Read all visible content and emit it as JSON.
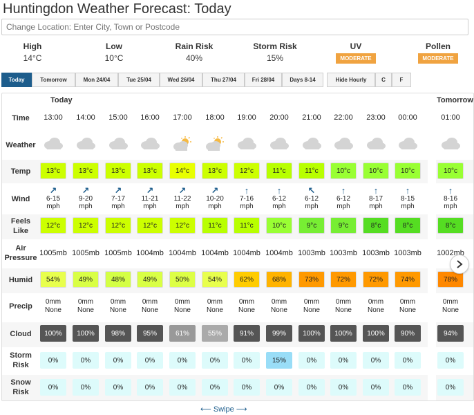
{
  "title": "Huntingdon Weather Forecast: Today",
  "search": {
    "placeholder": "Change Location: Enter City, Town or Postcode"
  },
  "summary": {
    "high": {
      "label": "High",
      "value": "14°C"
    },
    "low": {
      "label": "Low",
      "value": "10°C"
    },
    "rain": {
      "label": "Rain Risk",
      "value": "40%"
    },
    "storm": {
      "label": "Storm Risk",
      "value": "15%"
    },
    "uv": {
      "label": "UV",
      "value": "MODERATE"
    },
    "pollen": {
      "label": "Pollen",
      "value": "MODERATE"
    }
  },
  "tabs": [
    "Today",
    "Tomorrow",
    "Mon 24/04",
    "Tue 25/04",
    "Wed 26/04",
    "Thu 27/04",
    "Fri 28/04",
    "Days 8-14",
    "Hide Hourly",
    "C",
    "F"
  ],
  "days": {
    "today": "Today",
    "tomorrow": "Tomorrow"
  },
  "row_labels": {
    "time": "Time",
    "weather": "Weather",
    "temp": "Temp",
    "wind": "Wind",
    "feels1": "Feels",
    "feels2": "Like",
    "air1": "Air",
    "air2": "Pressure",
    "humid": "Humid",
    "precip": "Precip",
    "cloud": "Cloud",
    "storm1": "Storm",
    "storm2": "Risk",
    "snow1": "Snow",
    "snow2": "Risk"
  },
  "hours": [
    {
      "time": "13:00",
      "icon": "cloud-icon",
      "temp": "13°c",
      "temp_color": "#ccff00",
      "wind_dir": "↗",
      "wind": "6-15",
      "unit": "mph",
      "feels": "12°c",
      "feels_color": "#ccff00",
      "pressure": "1005mb",
      "humid": "54%",
      "humid_color": "#e8ff4d",
      "precip": "0mm",
      "precip_type": "None",
      "cloud": "100%",
      "cloud_color": "#555555",
      "storm": "0%",
      "storm_color": "#ddfbfb",
      "snow": "0%"
    },
    {
      "time": "14:00",
      "icon": "cloud-icon",
      "temp": "13°c",
      "temp_color": "#ccff00",
      "wind_dir": "↗",
      "wind": "9-20",
      "unit": "mph",
      "feels": "12°c",
      "feels_color": "#ccff00",
      "pressure": "1005mb",
      "humid": "49%",
      "humid_color": "#d9ff45",
      "precip": "0mm",
      "precip_type": "None",
      "cloud": "100%",
      "cloud_color": "#555555",
      "storm": "0%",
      "storm_color": "#ddfbfb",
      "snow": "0%"
    },
    {
      "time": "15:00",
      "icon": "cloud-icon",
      "temp": "13°c",
      "temp_color": "#ccff00",
      "wind_dir": "↗",
      "wind": "7-17",
      "unit": "mph",
      "feels": "12°c",
      "feels_color": "#ccff00",
      "pressure": "1005mb",
      "humid": "48%",
      "humid_color": "#d4ff45",
      "precip": "0mm",
      "precip_type": "None",
      "cloud": "98%",
      "cloud_color": "#555555",
      "storm": "0%",
      "storm_color": "#ddfbfb",
      "snow": "0%"
    },
    {
      "time": "16:00",
      "icon": "cloud-icon",
      "temp": "13°c",
      "temp_color": "#ccff00",
      "wind_dir": "↗",
      "wind": "11-21",
      "unit": "mph",
      "feels": "12°c",
      "feels_color": "#ccff00",
      "pressure": "1004mb",
      "humid": "49%",
      "humid_color": "#d9ff45",
      "precip": "0mm",
      "precip_type": "None",
      "cloud": "95%",
      "cloud_color": "#555555",
      "storm": "0%",
      "storm_color": "#ddfbfb",
      "snow": "0%"
    },
    {
      "time": "17:00",
      "icon": "sun-cloud-icon",
      "temp": "14°c",
      "temp_color": "#e8ff00",
      "wind_dir": "↗",
      "wind": "11-22",
      "unit": "mph",
      "feels": "12°c",
      "feels_color": "#ccff00",
      "pressure": "1004mb",
      "humid": "50%",
      "humid_color": "#ddff45",
      "precip": "0mm",
      "precip_type": "None",
      "cloud": "61%",
      "cloud_color": "#999999",
      "storm": "0%",
      "storm_color": "#ddfbfb",
      "snow": "0%"
    },
    {
      "time": "18:00",
      "icon": "sun-cloud-icon",
      "temp": "13°c",
      "temp_color": "#ccff00",
      "wind_dir": "↗",
      "wind": "10-20",
      "unit": "mph",
      "feels": "11°c",
      "feels_color": "#b8ff00",
      "pressure": "1004mb",
      "humid": "54%",
      "humid_color": "#e8ff4d",
      "precip": "0mm",
      "precip_type": "None",
      "cloud": "55%",
      "cloud_color": "#aaaaaa",
      "storm": "0%",
      "storm_color": "#ddfbfb",
      "snow": "0%"
    },
    {
      "time": "19:00",
      "icon": "cloud-icon",
      "temp": "12°c",
      "temp_color": "#ccff00",
      "wind_dir": "↑",
      "wind": "7-16",
      "unit": "mph",
      "feels": "11°c",
      "feels_color": "#b8ff00",
      "pressure": "1004mb",
      "humid": "62%",
      "humid_color": "#ffcc00",
      "precip": "0mm",
      "precip_type": "None",
      "cloud": "91%",
      "cloud_color": "#555555",
      "storm": "0%",
      "storm_color": "#ddfbfb",
      "snow": "0%"
    },
    {
      "time": "20:00",
      "icon": "cloud-icon",
      "temp": "11°c",
      "temp_color": "#b8ff00",
      "wind_dir": "↑",
      "wind": "6-12",
      "unit": "mph",
      "feels": "10°c",
      "feels_color": "#99ff33",
      "pressure": "1004mb",
      "humid": "68%",
      "humid_color": "#ffb300",
      "precip": "0mm",
      "precip_type": "None",
      "cloud": "99%",
      "cloud_color": "#555555",
      "storm": "15%",
      "storm_color": "#99ddf7",
      "snow": "0%"
    },
    {
      "time": "21:00",
      "icon": "cloud-icon",
      "temp": "11°c",
      "temp_color": "#b8ff00",
      "wind_dir": "↖",
      "wind": "6-12",
      "unit": "mph",
      "feels": "9°c",
      "feels_color": "#77ee33",
      "pressure": "1003mb",
      "humid": "73%",
      "humid_color": "#ff9900",
      "precip": "0mm",
      "precip_type": "None",
      "cloud": "100%",
      "cloud_color": "#555555",
      "storm": "0%",
      "storm_color": "#ddfbfb",
      "snow": "0%"
    },
    {
      "time": "22:00",
      "icon": "cloud-icon",
      "temp": "10°c",
      "temp_color": "#99ff33",
      "wind_dir": "↑",
      "wind": "6-12",
      "unit": "mph",
      "feels": "9°c",
      "feels_color": "#77ee33",
      "pressure": "1003mb",
      "humid": "72%",
      "humid_color": "#ff9900",
      "precip": "0mm",
      "precip_type": "None",
      "cloud": "100%",
      "cloud_color": "#555555",
      "storm": "0%",
      "storm_color": "#ddfbfb",
      "snow": "0%"
    },
    {
      "time": "23:00",
      "icon": "cloud-icon",
      "temp": "10°c",
      "temp_color": "#99ff33",
      "wind_dir": "↑",
      "wind": "8-17",
      "unit": "mph",
      "feels": "8°c",
      "feels_color": "#55dd22",
      "pressure": "1003mb",
      "humid": "72%",
      "humid_color": "#ff9900",
      "precip": "0mm",
      "precip_type": "None",
      "cloud": "100%",
      "cloud_color": "#555555",
      "storm": "0%",
      "storm_color": "#ddfbfb",
      "snow": "0%"
    },
    {
      "time": "00:00",
      "icon": "cloud-icon",
      "temp": "10°c",
      "temp_color": "#99ff33",
      "wind_dir": "↑",
      "wind": "8-15",
      "unit": "mph",
      "feels": "8°c",
      "feels_color": "#55dd22",
      "pressure": "1003mb",
      "humid": "74%",
      "humid_color": "#ff9900",
      "precip": "0mm",
      "precip_type": "None",
      "cloud": "90%",
      "cloud_color": "#555555",
      "storm": "0%",
      "storm_color": "#ddfbfb",
      "snow": "0%"
    },
    {
      "time": "01:00",
      "icon": "cloud-icon",
      "temp": "10°c",
      "temp_color": "#99ff33",
      "wind_dir": "↑",
      "wind": "8-16",
      "unit": "mph",
      "feels": "8°c",
      "feels_color": "#55dd22",
      "pressure": "1002mb",
      "humid": "78%",
      "humid_color": "#ff8800",
      "precip": "0mm",
      "precip_type": "None",
      "cloud": "94%",
      "cloud_color": "#555555",
      "storm": "0%",
      "storm_color": "#ddfbfb",
      "snow": "0%"
    }
  ],
  "swipe": "⟵ Swipe ⟶",
  "next_icon": "chevron-right-icon"
}
